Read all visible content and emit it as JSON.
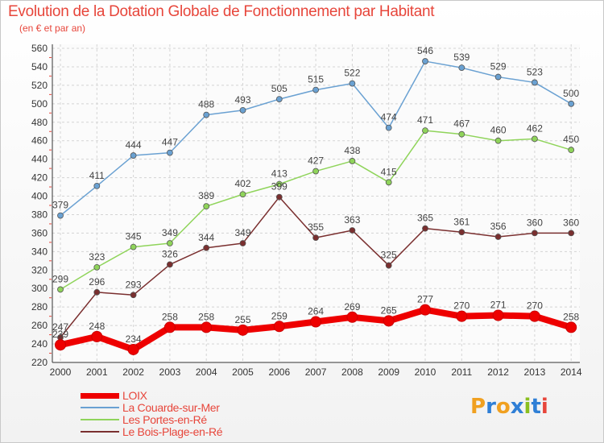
{
  "title": "Evolution de la Dotation Globale de Fonctionnement par Habitant",
  "subtitle": "(en € et par an)",
  "logo": {
    "text": "Proxiti",
    "colors": [
      "#f0a020",
      "#2f7fd6",
      "#f0a020",
      "#2f7fd6",
      "#8abf1f",
      "#2f7fd6",
      "#e7463b"
    ]
  },
  "chart_data": {
    "type": "line",
    "x": [
      2000,
      2001,
      2002,
      2003,
      2004,
      2005,
      2006,
      2007,
      2008,
      2009,
      2010,
      2011,
      2012,
      2013,
      2014
    ],
    "ylim": [
      220,
      560
    ],
    "yticks": [
      220,
      240,
      260,
      280,
      300,
      320,
      340,
      360,
      380,
      400,
      420,
      440,
      460,
      480,
      500,
      520,
      540,
      560
    ],
    "grid": true,
    "legend_position": "bottom-left",
    "series": [
      {
        "name": "LOIX",
        "color": "#ee0000",
        "values": [
          239,
          248,
          234,
          258,
          258,
          255,
          259,
          264,
          269,
          265,
          277,
          270,
          271,
          270,
          258
        ],
        "labels": [
          "239",
          "248",
          "234",
          "258",
          "258",
          "255",
          "259",
          "264",
          "269",
          "265",
          "277",
          "270",
          "271",
          "270",
          "258"
        ]
      },
      {
        "name": "La Couarde-sur-Mer",
        "color": "#6aa1d2",
        "values": [
          379,
          411,
          444,
          447,
          488,
          493,
          505,
          515,
          522,
          474,
          546,
          539,
          529,
          523,
          500
        ],
        "labels": [
          "379",
          "411",
          "444",
          "447",
          "488",
          "493",
          "505",
          "515",
          "522",
          "474",
          "546",
          "539",
          "529",
          "523",
          "500"
        ]
      },
      {
        "name": "Les Portes-en-Ré",
        "color": "#8fd45a",
        "values": [
          299,
          323,
          345,
          349,
          389,
          402,
          413,
          427,
          438,
          415,
          471,
          467,
          460,
          462,
          450
        ],
        "labels": [
          "299",
          "323",
          "345",
          "349",
          "389",
          "402",
          "413",
          "427",
          "438",
          "415",
          "471",
          "467",
          "460",
          "462",
          "450"
        ]
      },
      {
        "name": "Le Bois-Plage-en-Ré",
        "color": "#7a2f2f",
        "values": [
          247,
          296,
          293,
          326,
          344,
          349,
          399,
          355,
          363,
          325,
          365,
          361,
          356,
          360,
          360
        ],
        "labels": [
          "247",
          "296",
          "293",
          "326",
          "344",
          "349",
          "399",
          "355",
          "363",
          "325",
          "365",
          "361",
          "356",
          "360",
          "360"
        ]
      }
    ]
  }
}
